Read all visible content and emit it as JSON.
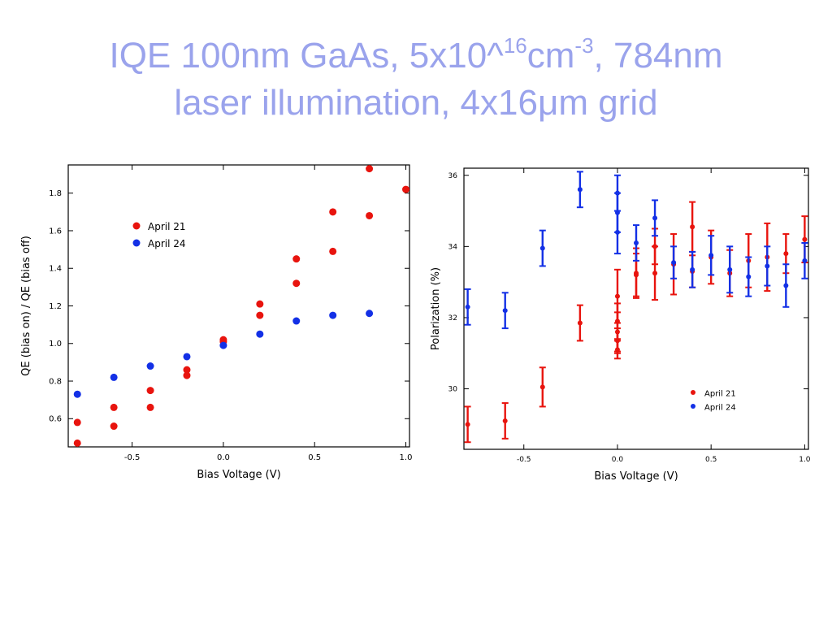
{
  "slide": {
    "title_line1_pre": "IQE 100nm GaAs, 5x10^",
    "title_line1_exp1": "16",
    "title_line1_mid": "cm",
    "title_line1_exp2": "-3",
    "title_line1_post": ", 784nm",
    "title_line2": "laser illumination, 4x16μm grid"
  },
  "chart_data": [
    {
      "type": "scatter",
      "xlabel": "Bias Voltage (V)",
      "ylabel": "QE (bias on) / QE (bias off)",
      "xlim": [
        -0.85,
        1.02
      ],
      "ylim": [
        0.45,
        1.95
      ],
      "x_ticks": [
        -0.5,
        0.0,
        0.5,
        1.0
      ],
      "x_tick_labels": [
        "-0.5",
        "0.0",
        "0.5",
        "1.0"
      ],
      "y_ticks": [
        0.6,
        0.8,
        1.0,
        1.2,
        1.4,
        1.6,
        1.8
      ],
      "y_tick_labels": [
        "0.6",
        "0.8",
        "1.0",
        "1.2",
        "1.4",
        "1.6",
        "1.8"
      ],
      "grid": false,
      "legend_position": "upper-left",
      "series": [
        {
          "name": "April 21",
          "color": "#e8140e",
          "x": [
            -0.8,
            -0.8,
            -0.6,
            -0.6,
            -0.4,
            -0.4,
            -0.2,
            -0.2,
            0.0,
            0.0,
            0.2,
            0.2,
            0.4,
            0.4,
            0.6,
            0.6,
            0.8,
            0.8,
            1.0
          ],
          "y": [
            0.58,
            0.47,
            0.66,
            0.56,
            0.75,
            0.66,
            0.86,
            0.83,
            1.02,
            1.01,
            1.21,
            1.15,
            1.45,
            1.32,
            1.7,
            1.49,
            1.93,
            1.68,
            1.82
          ]
        },
        {
          "name": "April 24",
          "color": "#1330e6",
          "x": [
            -0.8,
            -0.6,
            -0.4,
            -0.2,
            0.0,
            0.2,
            0.4,
            0.6,
            0.8
          ],
          "y": [
            0.73,
            0.82,
            0.88,
            0.93,
            0.99,
            1.05,
            1.12,
            1.15,
            1.16
          ]
        }
      ]
    },
    {
      "type": "scatter",
      "xlabel": "Bias Voltage (V)",
      "ylabel": "Polarization (%)",
      "xlim": [
        -0.82,
        1.02
      ],
      "ylim": [
        28.3,
        36.2
      ],
      "x_ticks": [
        -0.5,
        0.0,
        0.5,
        1.0
      ],
      "x_tick_labels": [
        "-0.5",
        "0.0",
        "0.5",
        "1.0"
      ],
      "y_ticks": [
        30,
        32,
        34,
        36
      ],
      "y_tick_labels": [
        "30",
        "32",
        "34",
        "36"
      ],
      "grid": false,
      "legend_position": "lower-right",
      "series": [
        {
          "name": "April 21",
          "color": "#e8140e",
          "x": [
            -0.8,
            -0.6,
            -0.4,
            -0.2,
            0.0,
            0.0,
            0.0,
            0.0,
            0.0,
            0.1,
            0.1,
            0.2,
            0.2,
            0.3,
            0.4,
            0.4,
            0.5,
            0.6,
            0.7,
            0.8,
            0.9,
            1.0
          ],
          "y": [
            29.0,
            29.1,
            30.05,
            31.85,
            32.6,
            31.9,
            31.6,
            31.35,
            31.1,
            33.2,
            33.25,
            33.25,
            34.0,
            33.5,
            34.55,
            33.3,
            33.7,
            33.25,
            33.6,
            33.7,
            33.8,
            34.2
          ],
          "err": [
            0.5,
            0.5,
            0.55,
            0.5,
            0.75,
            0.5,
            0.55,
            0.35,
            0.25,
            0.6,
            0.7,
            0.75,
            0.5,
            0.85,
            0.7,
            0.45,
            0.75,
            0.65,
            0.75,
            0.95,
            0.55,
            0.65
          ]
        },
        {
          "name": "April 24",
          "color": "#1330e6",
          "x": [
            -0.8,
            -0.6,
            0.0,
            0.0,
            0.0,
            -0.4,
            -0.2,
            0.1,
            0.2,
            0.3,
            0.4,
            0.5,
            0.6,
            0.7,
            0.8,
            0.9,
            1.0
          ],
          "y": [
            32.3,
            32.2,
            35.5,
            34.4,
            34.95,
            33.95,
            35.6,
            34.1,
            34.8,
            33.55,
            33.35,
            33.75,
            33.35,
            33.15,
            33.45,
            32.9,
            33.6
          ],
          "err": [
            0.5,
            0.5,
            0.5,
            0.6,
            0.55,
            0.5,
            0.5,
            0.5,
            0.5,
            0.45,
            0.5,
            0.55,
            0.65,
            0.55,
            0.55,
            0.6,
            0.5
          ]
        }
      ]
    }
  ]
}
